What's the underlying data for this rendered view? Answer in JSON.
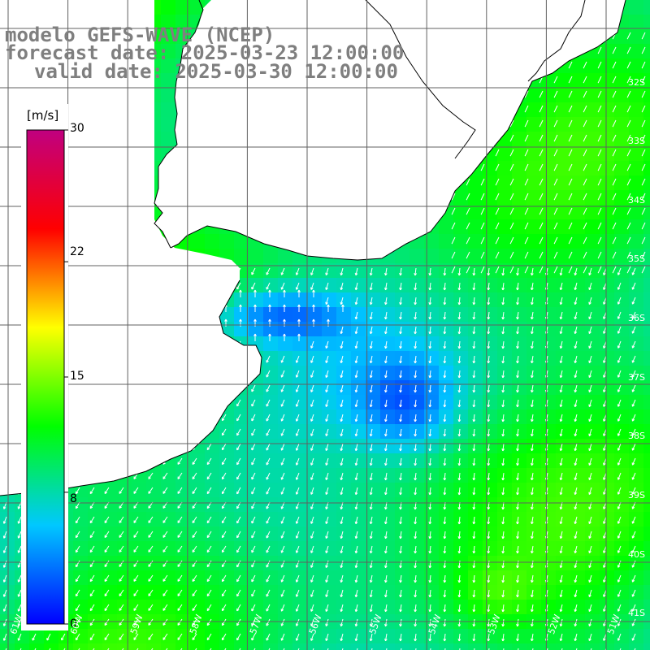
{
  "header": {
    "line1": "modelo GEFS-WAVE (NCEP)",
    "line2": "forecast date: 2025-03-23 12:00:00",
    "line3": "valid date: 2025-03-30 12:00:00"
  },
  "colorbar": {
    "units": "[m/s]",
    "ticks": [
      {
        "label": "30",
        "value": 30
      },
      {
        "label": "22",
        "value": 22
      },
      {
        "label": "15",
        "value": 15
      },
      {
        "label": "8",
        "value": 8
      },
      {
        "label": "0",
        "value": 0
      }
    ],
    "colors": [
      "#0000ff",
      "#00c8ff",
      "#00ff00",
      "#ffff00",
      "#ff0000",
      "#c00080"
    ]
  },
  "map": {
    "lat_labels": [
      "32S",
      "33S",
      "34S",
      "35S",
      "36S",
      "37S",
      "38S",
      "39S",
      "40S",
      "41S"
    ],
    "lon_labels": [
      "61W",
      "60W",
      "59W",
      "58W",
      "57W",
      "56W",
      "55W",
      "54W",
      "53W",
      "52W",
      "51W"
    ],
    "grid_color": "#606060",
    "land_color": "#ffffff",
    "vector_color": "#ffffff"
  }
}
